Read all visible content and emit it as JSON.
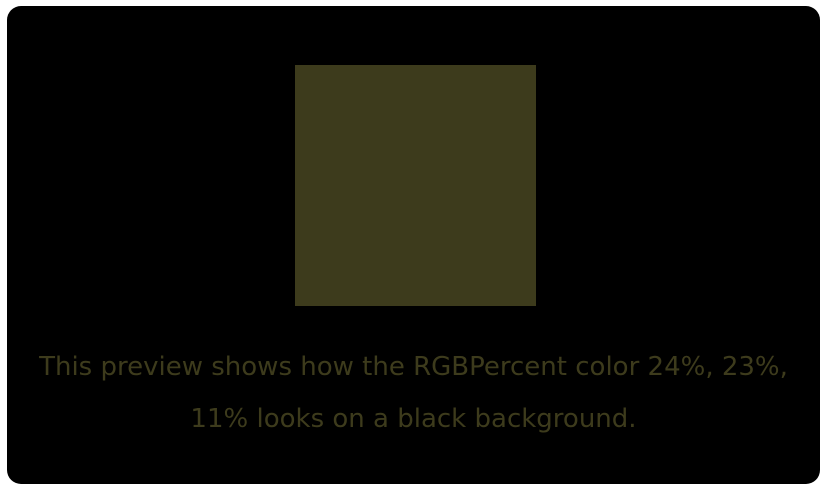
{
  "preview": {
    "caption": "This preview shows how the RGBPercent color 24%, 23%, 11% looks on a black background.",
    "swatch_color": "#3d3b1c",
    "text_color": "#3d3b1c",
    "background_color": "#000000"
  }
}
